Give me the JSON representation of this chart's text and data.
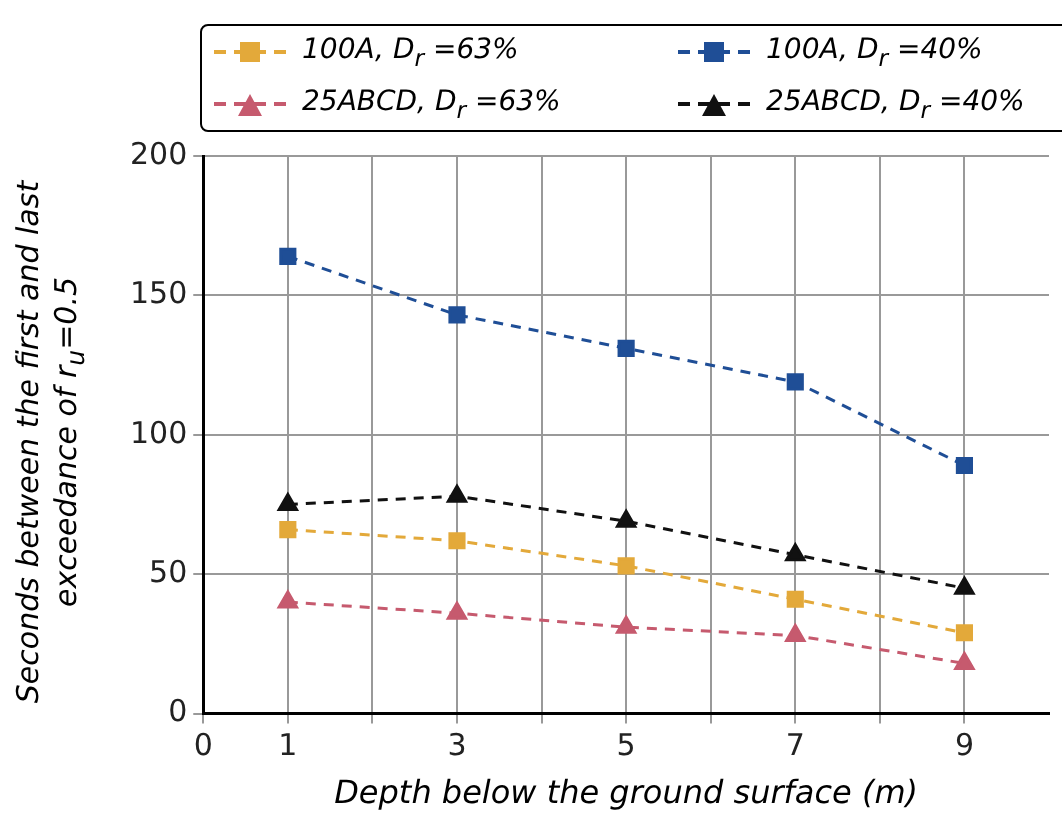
{
  "chart_data": {
    "type": "line",
    "xlabel": "Depth below the ground surface (m)",
    "ylabel": "Seconds between the first and last exceedance of r$_{u}$=0.5",
    "x": [
      1,
      3,
      5,
      7,
      9
    ],
    "series": [
      {
        "name": "100A, D$_{r}$ =63%",
        "color": "#e3a93a",
        "marker": "square",
        "values": [
          66,
          62,
          53,
          41,
          29
        ]
      },
      {
        "name": "100A, D$_{r}$ =40%",
        "color": "#1f4e96",
        "marker": "square",
        "values": [
          164,
          143,
          131,
          119,
          89
        ]
      },
      {
        "name": "25ABCD, D$_{r}$ =63%",
        "color": "#c65a6e",
        "marker": "triangle",
        "values": [
          40,
          36,
          31,
          28,
          18
        ]
      },
      {
        "name": "25ABCD, D$_{r}$ =40%",
        "color": "#111111",
        "marker": "triangle",
        "values": [
          75,
          78,
          69,
          57,
          45
        ]
      }
    ],
    "xlim": [
      0,
      10
    ],
    "xticks": [
      0,
      1,
      {
        "value": 2,
        "label": null
      },
      3,
      {
        "value": 4,
        "label": null
      },
      5,
      {
        "value": 6,
        "label": null
      },
      7,
      {
        "value": 8,
        "label": null
      },
      9
    ],
    "ylim": [
      0,
      200
    ],
    "yticks": [
      0,
      50,
      100,
      150,
      200
    ],
    "grid": true,
    "legend": "top",
    "line_style": "dashed"
  }
}
